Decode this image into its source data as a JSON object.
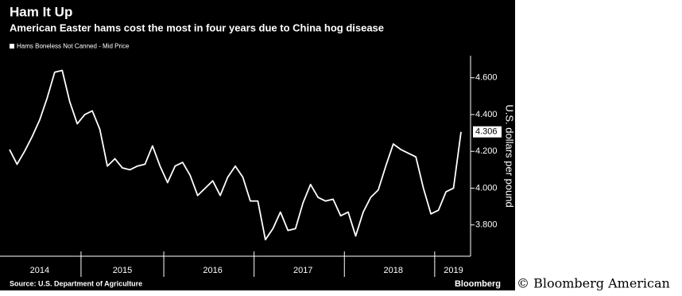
{
  "chart_data": {
    "type": "line",
    "title": "Ham It Up",
    "subtitle": "American Easter hams cost the most in four years due to China hog disease",
    "y_label": "U.S. dollars per pound",
    "source": "Source: U.S. Department of Agriculture",
    "brand": "Bloomberg",
    "credit": "© Bloomberg American",
    "categories": [
      null,
      null,
      null,
      null,
      "2014",
      null,
      null,
      null,
      null,
      null,
      null,
      null,
      null,
      null,
      null,
      "2015",
      null,
      null,
      null,
      null,
      null,
      null,
      null,
      null,
      null,
      null,
      null,
      "2016",
      null,
      null,
      null,
      null,
      null,
      null,
      null,
      null,
      null,
      null,
      null,
      "2017",
      null,
      null,
      null,
      null,
      null,
      null,
      null,
      null,
      null,
      null,
      null,
      "2018",
      null,
      null,
      null,
      null,
      null,
      null,
      null,
      "2019",
      null
    ],
    "series": [
      {
        "name": "Hams Boneless Not Canned - Mid Price",
        "color": "#ffffff",
        "values": [
          4.21,
          4.13,
          4.2,
          4.28,
          4.37,
          4.49,
          4.63,
          4.64,
          4.47,
          4.35,
          4.4,
          4.42,
          4.32,
          4.12,
          4.16,
          4.11,
          4.1,
          4.12,
          4.13,
          4.23,
          4.12,
          4.03,
          4.12,
          4.14,
          4.07,
          3.96,
          4.0,
          4.04,
          3.96,
          4.06,
          4.12,
          4.06,
          3.93,
          3.93,
          3.72,
          3.78,
          3.87,
          3.77,
          3.78,
          3.92,
          4.02,
          3.95,
          3.93,
          3.94,
          3.85,
          3.87,
          3.74,
          3.87,
          3.95,
          3.99,
          4.12,
          4.24,
          4.21,
          4.19,
          4.17,
          4.0,
          3.86,
          3.88,
          3.98,
          4.0,
          4.306
        ]
      }
    ],
    "ylim": [
      3.63,
      4.72
    ],
    "yticks": [
      {
        "value": 3.8,
        "label": "3.800"
      },
      {
        "value": 4.0,
        "label": "4.000"
      },
      {
        "value": 4.2,
        "label": "4.200"
      },
      {
        "value": 4.4,
        "label": "4.400"
      },
      {
        "value": 4.6,
        "label": "4.600"
      }
    ],
    "grid": false,
    "legend": "top-left"
  }
}
